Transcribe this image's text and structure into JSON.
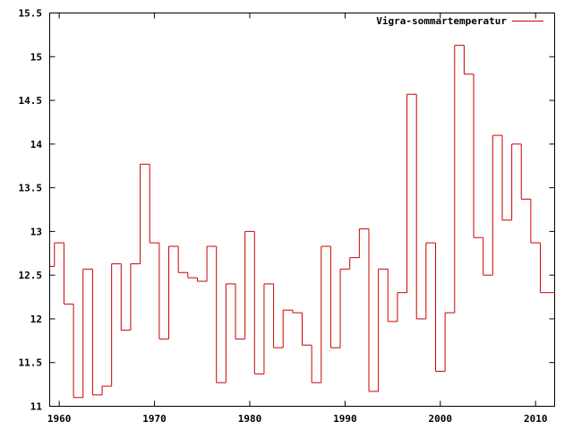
{
  "chart_data": {
    "type": "line",
    "style": "step",
    "title": "",
    "xlabel": "",
    "ylabel": "",
    "xlim": [
      1959,
      2012
    ],
    "ylim": [
      11,
      15.5
    ],
    "x_ticks": [
      1960,
      1970,
      1980,
      1990,
      2000,
      2010
    ],
    "y_ticks": [
      11,
      11.5,
      12,
      12.5,
      13,
      13.5,
      14,
      14.5,
      15,
      15.5
    ],
    "grid": false,
    "legend_position": "top-right",
    "series": [
      {
        "name": "Vigra-sommartemperatur",
        "color": "#cc0000",
        "x": [
          1959,
          1960,
          1961,
          1962,
          1963,
          1964,
          1965,
          1966,
          1967,
          1968,
          1969,
          1970,
          1971,
          1972,
          1973,
          1974,
          1975,
          1976,
          1977,
          1978,
          1979,
          1980,
          1981,
          1982,
          1983,
          1984,
          1985,
          1986,
          1987,
          1988,
          1989,
          1990,
          1991,
          1992,
          1993,
          1994,
          1995,
          1996,
          1997,
          1998,
          1999,
          2000,
          2001,
          2002,
          2003,
          2004,
          2005,
          2006,
          2007,
          2008,
          2009,
          2010,
          2011
        ],
        "values": [
          12.6,
          12.87,
          12.17,
          11.1,
          12.57,
          11.13,
          11.23,
          12.63,
          11.87,
          12.63,
          13.77,
          12.87,
          11.77,
          12.83,
          12.53,
          12.47,
          12.43,
          12.83,
          11.27,
          12.4,
          11.77,
          13.0,
          11.37,
          12.4,
          11.67,
          12.1,
          12.07,
          11.7,
          11.27,
          12.83,
          11.67,
          12.57,
          12.7,
          13.03,
          11.17,
          12.57,
          11.97,
          12.3,
          14.57,
          12.0,
          12.87,
          11.4,
          12.07,
          15.13,
          14.8,
          12.93,
          12.5,
          14.1,
          13.13,
          14.0,
          13.37,
          12.87,
          12.3
        ]
      }
    ]
  }
}
